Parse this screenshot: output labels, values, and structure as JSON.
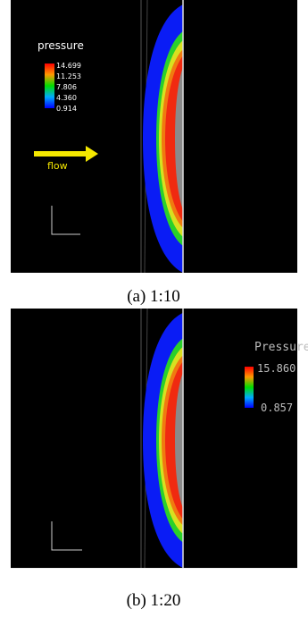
{
  "panels": [
    {
      "legend_title": "pressure",
      "legend_labels": [
        "14.699",
        "11.253",
        "7.806",
        "4.360",
        "0.914"
      ],
      "annotation": "flow",
      "caption": "(a) 1:10"
    },
    {
      "legend_title": "Pressure",
      "legend_labels": [
        "15.860",
        "0.857"
      ],
      "caption": "(b) 1:20"
    }
  ]
}
